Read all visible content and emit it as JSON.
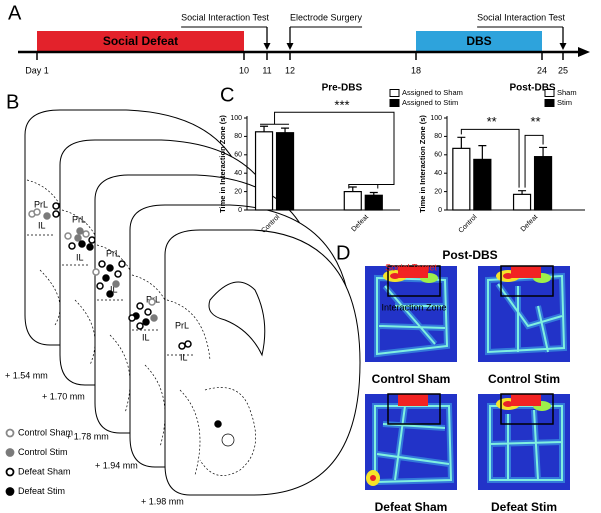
{
  "timeline": {
    "label": "A",
    "phases": [
      {
        "name": "Social Defeat",
        "start": 1,
        "end": 10,
        "color": "#e3222b"
      },
      {
        "name": "DBS",
        "start": 18,
        "end": 24,
        "color": "#2ea3dc"
      }
    ],
    "events": [
      {
        "label": "Social Interaction Test",
        "day": 11
      },
      {
        "label": "Electrode Surgery",
        "day": 12
      },
      {
        "label": "Social Interaction Test",
        "day": 25
      }
    ],
    "ticks": [
      {
        "value": 1,
        "label": "Day 1"
      },
      10,
      11,
      12,
      18,
      24,
      25
    ]
  },
  "brain_sections": {
    "label": "B",
    "sections": [
      {
        "level": "+ 1.54 mm",
        "regions": [
          "PrL",
          "IL"
        ]
      },
      {
        "level": "+ 1.70 mm",
        "regions": [
          "PrL",
          "IL"
        ]
      },
      {
        "level": "+ 1.78 mm",
        "regions": [
          "PrL",
          "IL"
        ]
      },
      {
        "level": "+ 1.94 mm",
        "regions": [
          "PrL",
          "IL"
        ]
      },
      {
        "level": "+ 1.98 mm",
        "regions": [
          "PrL",
          "IL"
        ]
      }
    ],
    "legend": [
      "Control Sham",
      "Control Stim",
      "Defeat Sham",
      "Defeat Stim"
    ]
  },
  "chart_data": [
    {
      "type": "bar",
      "panel_label": "C",
      "title": "Pre-DBS",
      "y_label": "Time in Interaction Zone (s)",
      "categories": [
        "Control",
        "Defeat"
      ],
      "series": [
        {
          "name": "Assigned to Sham",
          "color": "#ffffff",
          "values": [
            85,
            20
          ],
          "errors": [
            6,
            5
          ]
        },
        {
          "name": "Assigned to Stim",
          "color": "#000000",
          "values": [
            84,
            16
          ],
          "errors": [
            5,
            3
          ]
        }
      ],
      "ylim": [
        0,
        100
      ],
      "yticks": [
        0,
        20,
        40,
        60,
        80,
        100
      ],
      "annotations": [
        "***"
      ]
    },
    {
      "type": "bar",
      "title": "Post-DBS",
      "y_label": "Time in Interaction Zone (s)",
      "categories": [
        "Control",
        "Defeat"
      ],
      "series": [
        {
          "name": "Sham",
          "color": "#ffffff",
          "values": [
            67,
            17
          ],
          "errors": [
            12,
            4
          ]
        },
        {
          "name": "Stim",
          "color": "#000000",
          "values": [
            55,
            58
          ],
          "errors": [
            15,
            10
          ]
        }
      ],
      "ylim": [
        0,
        100
      ],
      "yticks": [
        0,
        20,
        40,
        60,
        80,
        100
      ],
      "annotations": [
        "**",
        "**"
      ]
    }
  ],
  "heatmaps": {
    "label": "D",
    "title": "Post-DBS",
    "target_label": "Social Target",
    "zone_label": "Interaction Zone",
    "panels": [
      "Control Sham",
      "Control Stim",
      "Defeat Sham",
      "Defeat Stim"
    ]
  }
}
